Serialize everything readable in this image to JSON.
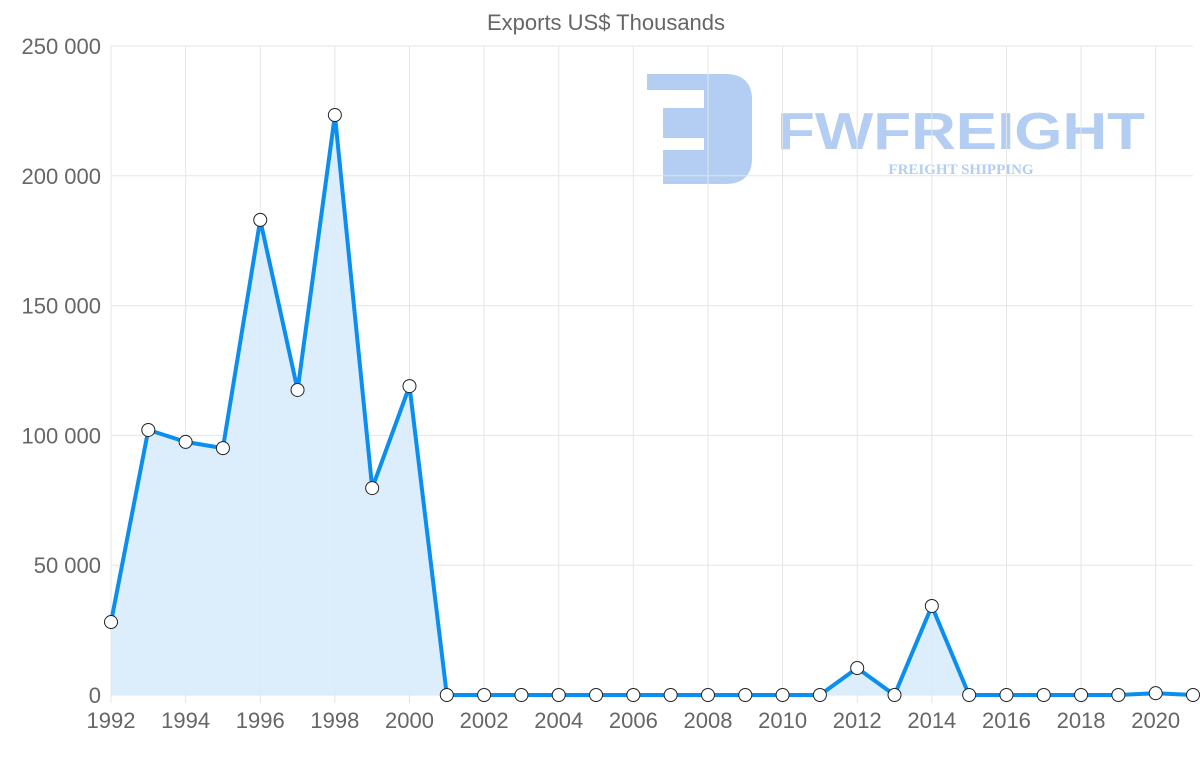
{
  "chart_data": {
    "type": "line",
    "title": "Exports US$ Thousands",
    "xlabel": "",
    "ylabel": "",
    "x": [
      1992,
      1993,
      1994,
      1995,
      1996,
      1997,
      1998,
      1999,
      2000,
      2001,
      2002,
      2003,
      2004,
      2005,
      2006,
      2007,
      2008,
      2009,
      2010,
      2011,
      2012,
      2013,
      2014,
      2015,
      2016,
      2017,
      2018,
      2019,
      2020,
      2021
    ],
    "series": [
      {
        "name": "Exports US$ Thousands",
        "values": [
          28100,
          102100,
          97500,
          95100,
          183000,
          117500,
          223400,
          79700,
          119000,
          0,
          0,
          0,
          0,
          0,
          0,
          0,
          0,
          0,
          0,
          0,
          10400,
          0,
          34300,
          0,
          0,
          0,
          0,
          0,
          700,
          0
        ],
        "color": "#0a8ff0",
        "fill": "#d8ecfc"
      }
    ],
    "ylim": [
      0,
      250000
    ],
    "xlim": [
      1992,
      2021
    ],
    "yticks": [
      "0",
      "50 000",
      "100 000",
      "150 000",
      "200 000",
      "250 000"
    ],
    "xticks": [
      "1992",
      "1994",
      "1996",
      "1998",
      "2000",
      "2002",
      "2004",
      "2006",
      "2008",
      "2010",
      "2012",
      "2014",
      "2016",
      "2018",
      "2020"
    ],
    "grid": true,
    "legend": "none"
  },
  "watermark": {
    "brand": "FWFREIGHT",
    "tagline": "FREIGHT SHIPPING",
    "color": "#b3cdf3"
  }
}
